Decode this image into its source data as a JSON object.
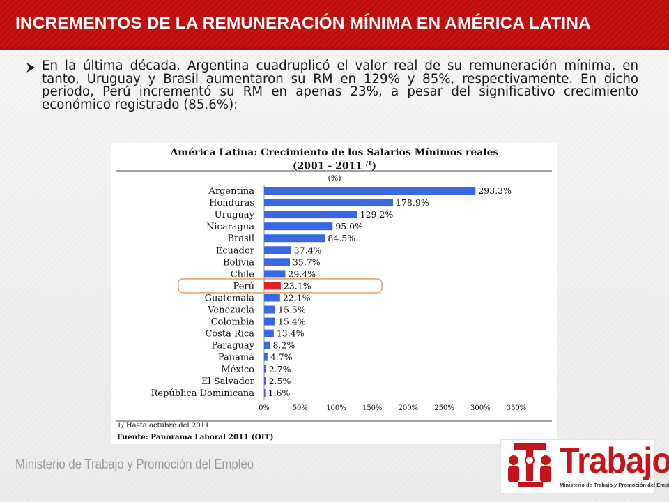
{
  "slide": {
    "title": "INCREMENTOS DE LA REMUNERACIÓN MÍNIMA EN AMÉRICA LATINA",
    "bullet_text": "En la última década, Argentina cuadruplicó el valor real de su remuneración mínima, en tanto, Uruguay y Brasil aumentaron su RM en 129% y 85%, respectivamente. En dicho periodo, Perú incrementó su RM en apenas 23%, a pesar del significativo crecimiento económico registrado (85.6%):",
    "footer": "Ministerio de Trabajo y Promoción del Empleo",
    "bullet_icon": "arrow-bullet-icon"
  },
  "logo": {
    "word": "Trabajo",
    "subtitle": "Ministerio de Trabajo y Promoción del Empleo"
  },
  "colors": {
    "title_bar": "#c0100f",
    "bar": "#3a67e6",
    "highlight_bar": "#ee1c1c",
    "highlight_outline": "#e0955a"
  },
  "chart_data": {
    "type": "bar",
    "orientation": "horizontal",
    "title_line1": "América Latina: Crecimiento de los  Salarios Mínimos reales",
    "title_line2": "(2001 - 2011",
    "title_line2_sup": "/1",
    "title_line2_end": ")",
    "unit_label": "(%)",
    "categories": [
      "Argentina",
      "Honduras",
      "Uruguay",
      "Nicaragua",
      "Brasil",
      "Ecuador",
      "Bolivia",
      "Chile",
      "Perú",
      "Guatemala",
      "Venezuela",
      "Colombia",
      "Costa Rica",
      "Paraguay",
      "Panamá",
      "México",
      "El Salvador",
      "República Dominicana"
    ],
    "values": [
      293.3,
      178.9,
      129.2,
      95.0,
      84.5,
      37.4,
      35.7,
      29.4,
      23.1,
      22.1,
      15.5,
      15.4,
      13.4,
      8.2,
      4.7,
      2.7,
      2.5,
      1.6
    ],
    "value_labels": [
      "293.3%",
      "178.9%",
      "129.2%",
      "95.0%",
      "84.5%",
      "37.4%",
      "35.7%",
      "29.4%",
      "23.1%",
      "22.1%",
      "15.5%",
      "15.4%",
      "13.4%",
      "8.2%",
      "4.7%",
      "2.7%",
      "2.5%",
      "1.6%"
    ],
    "highlight": "Perú",
    "xlim": [
      0,
      350
    ],
    "xticks": [
      "0%",
      "50%",
      "100%",
      "150%",
      "200%",
      "250%",
      "300%",
      "350%"
    ],
    "grid": false,
    "legend": "none",
    "note": "1/ Hasta octubre del 2011",
    "source": "Fuente: Panorama Laboral 2011 (OIT)"
  }
}
